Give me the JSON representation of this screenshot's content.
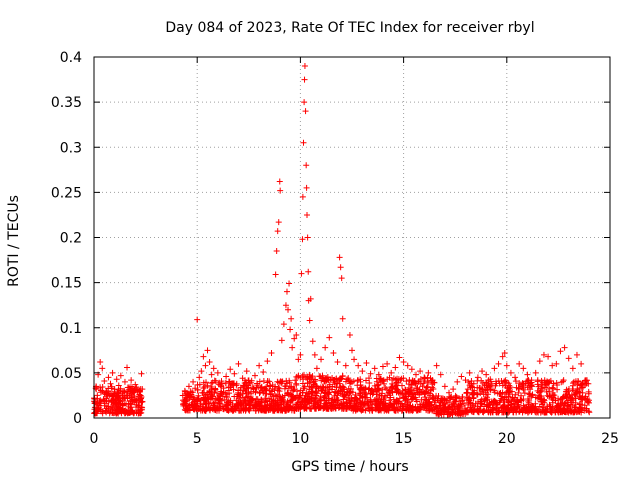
{
  "chart_data": {
    "type": "scatter",
    "title": "Day 084 of 2023, Rate Of TEC Index for receiver rbyl",
    "xlabel": "GPS time / hours",
    "ylabel": "ROTI / TECUs",
    "xlim": [
      0,
      25
    ],
    "ylim": [
      0,
      0.4
    ],
    "x_ticks": [
      {
        "value": 0,
        "label": "0"
      },
      {
        "value": 5,
        "label": "5"
      },
      {
        "value": 10,
        "label": "10"
      },
      {
        "value": 15,
        "label": "15"
      },
      {
        "value": 20,
        "label": "20"
      },
      {
        "value": 25,
        "label": "25"
      }
    ],
    "y_ticks": [
      {
        "value": 0,
        "label": "0"
      },
      {
        "value": 0.05,
        "label": "0.05"
      },
      {
        "value": 0.1,
        "label": "0.1"
      },
      {
        "value": 0.15,
        "label": "0.15"
      },
      {
        "value": 0.2,
        "label": "0.2"
      },
      {
        "value": 0.25,
        "label": "0.25"
      },
      {
        "value": 0.3,
        "label": "0.3"
      },
      {
        "value": 0.35,
        "label": "0.35"
      },
      {
        "value": 0.4,
        "label": "0.4"
      }
    ],
    "grid": true,
    "marker": "+",
    "color": "#ff0000",
    "series": [
      {
        "name": "ROTI",
        "points": [
          [
            0.0,
            0.022
          ],
          [
            0.1,
            0.035
          ],
          [
            0.2,
            0.048
          ],
          [
            0.3,
            0.062
          ],
          [
            0.4,
            0.055
          ],
          [
            0.5,
            0.041
          ],
          [
            0.6,
            0.03
          ],
          [
            0.7,
            0.045
          ],
          [
            0.8,
            0.038
          ],
          [
            0.9,
            0.05
          ],
          [
            1.0,
            0.032
          ],
          [
            1.1,
            0.043
          ],
          [
            1.2,
            0.036
          ],
          [
            1.3,
            0.047
          ],
          [
            1.4,
            0.029
          ],
          [
            1.5,
            0.04
          ],
          [
            1.6,
            0.056
          ],
          [
            1.7,
            0.034
          ],
          [
            1.8,
            0.042
          ],
          [
            1.9,
            0.028
          ],
          [
            2.0,
            0.037
          ],
          [
            2.1,
            0.031
          ],
          [
            2.2,
            0.026
          ],
          [
            2.3,
            0.049
          ],
          [
            2.35,
            0.018
          ],
          [
            4.3,
            0.025
          ],
          [
            4.4,
            0.03
          ],
          [
            4.5,
            0.022
          ],
          [
            4.6,
            0.035
          ],
          [
            4.7,
            0.028
          ],
          [
            4.8,
            0.04
          ],
          [
            4.9,
            0.033
          ],
          [
            5.0,
            0.109
          ],
          [
            5.1,
            0.045
          ],
          [
            5.2,
            0.052
          ],
          [
            5.3,
            0.068
          ],
          [
            5.4,
            0.058
          ],
          [
            5.5,
            0.075
          ],
          [
            5.6,
            0.062
          ],
          [
            5.7,
            0.048
          ],
          [
            5.8,
            0.055
          ],
          [
            5.9,
            0.041
          ],
          [
            6.0,
            0.05
          ],
          [
            6.2,
            0.038
          ],
          [
            6.4,
            0.046
          ],
          [
            6.6,
            0.054
          ],
          [
            6.8,
            0.049
          ],
          [
            7.0,
            0.06
          ],
          [
            7.2,
            0.044
          ],
          [
            7.4,
            0.052
          ],
          [
            7.6,
            0.039
          ],
          [
            7.8,
            0.047
          ],
          [
            8.0,
            0.058
          ],
          [
            8.2,
            0.051
          ],
          [
            8.4,
            0.063
          ],
          [
            8.6,
            0.072
          ],
          [
            8.8,
            0.159
          ],
          [
            8.85,
            0.185
          ],
          [
            8.9,
            0.207
          ],
          [
            8.95,
            0.217
          ],
          [
            9.0,
            0.262
          ],
          [
            9.02,
            0.252
          ],
          [
            9.1,
            0.086
          ],
          [
            9.2,
            0.104
          ],
          [
            9.3,
            0.125
          ],
          [
            9.35,
            0.14
          ],
          [
            9.4,
            0.12
          ],
          [
            9.45,
            0.149
          ],
          [
            9.5,
            0.098
          ],
          [
            9.55,
            0.11
          ],
          [
            9.6,
            0.078
          ],
          [
            9.7,
            0.088
          ],
          [
            9.8,
            0.092
          ],
          [
            9.9,
            0.065
          ],
          [
            10.0,
            0.07
          ],
          [
            10.05,
            0.16
          ],
          [
            10.1,
            0.198
          ],
          [
            10.12,
            0.245
          ],
          [
            10.15,
            0.305
          ],
          [
            10.18,
            0.35
          ],
          [
            10.2,
            0.375
          ],
          [
            10.22,
            0.39
          ],
          [
            10.25,
            0.34
          ],
          [
            10.28,
            0.28
          ],
          [
            10.3,
            0.255
          ],
          [
            10.32,
            0.225
          ],
          [
            10.35,
            0.2
          ],
          [
            10.38,
            0.162
          ],
          [
            10.4,
            0.13
          ],
          [
            10.45,
            0.108
          ],
          [
            10.5,
            0.132
          ],
          [
            10.6,
            0.085
          ],
          [
            10.7,
            0.07
          ],
          [
            10.8,
            0.055
          ],
          [
            11.0,
            0.065
          ],
          [
            11.2,
            0.078
          ],
          [
            11.4,
            0.089
          ],
          [
            11.6,
            0.072
          ],
          [
            11.8,
            0.062
          ],
          [
            11.9,
            0.178
          ],
          [
            11.95,
            0.167
          ],
          [
            12.0,
            0.155
          ],
          [
            12.05,
            0.11
          ],
          [
            12.2,
            0.058
          ],
          [
            12.4,
            0.092
          ],
          [
            12.5,
            0.075
          ],
          [
            12.6,
            0.065
          ],
          [
            12.8,
            0.058
          ],
          [
            13.0,
            0.052
          ],
          [
            13.2,
            0.061
          ],
          [
            13.4,
            0.049
          ],
          [
            13.6,
            0.055
          ],
          [
            13.8,
            0.048
          ],
          [
            14.0,
            0.057
          ],
          [
            14.2,
            0.06
          ],
          [
            14.4,
            0.05
          ],
          [
            14.6,
            0.056
          ],
          [
            14.8,
            0.067
          ],
          [
            15.0,
            0.062
          ],
          [
            15.2,
            0.058
          ],
          [
            15.4,
            0.054
          ],
          [
            15.6,
            0.048
          ],
          [
            15.8,
            0.052
          ],
          [
            16.0,
            0.045
          ],
          [
            16.2,
            0.05
          ],
          [
            16.4,
            0.042
          ],
          [
            16.6,
            0.058
          ],
          [
            16.8,
            0.048
          ],
          [
            17.0,
            0.035
          ],
          [
            17.2,
            0.028
          ],
          [
            17.4,
            0.032
          ],
          [
            17.6,
            0.04
          ],
          [
            17.8,
            0.046
          ],
          [
            18.0,
            0.042
          ],
          [
            18.2,
            0.05
          ],
          [
            18.4,
            0.038
          ],
          [
            18.6,
            0.045
          ],
          [
            18.8,
            0.052
          ],
          [
            19.0,
            0.048
          ],
          [
            19.2,
            0.043
          ],
          [
            19.4,
            0.055
          ],
          [
            19.6,
            0.06
          ],
          [
            19.8,
            0.068
          ],
          [
            19.9,
            0.072
          ],
          [
            20.0,
            0.058
          ],
          [
            20.2,
            0.05
          ],
          [
            20.4,
            0.045
          ],
          [
            20.6,
            0.06
          ],
          [
            20.8,
            0.055
          ],
          [
            21.0,
            0.048
          ],
          [
            21.2,
            0.042
          ],
          [
            21.4,
            0.05
          ],
          [
            21.6,
            0.063
          ],
          [
            21.8,
            0.07
          ],
          [
            22.0,
            0.068
          ],
          [
            22.2,
            0.058
          ],
          [
            22.4,
            0.06
          ],
          [
            22.6,
            0.074
          ],
          [
            22.8,
            0.078
          ],
          [
            23.0,
            0.066
          ],
          [
            23.2,
            0.055
          ],
          [
            23.4,
            0.07
          ],
          [
            23.6,
            0.06
          ],
          [
            23.8,
            0.04
          ],
          [
            23.95,
            0.038
          ]
        ],
        "bands": [
          {
            "x_start": 0.0,
            "x_end": 2.35,
            "y_min": 0.005,
            "y_max": 0.035,
            "n": 260
          },
          {
            "x_start": 4.3,
            "x_end": 5.0,
            "y_min": 0.008,
            "y_max": 0.03,
            "n": 70
          },
          {
            "x_start": 5.0,
            "x_end": 9.8,
            "y_min": 0.008,
            "y_max": 0.042,
            "n": 520
          },
          {
            "x_start": 9.8,
            "x_end": 12.5,
            "y_min": 0.01,
            "y_max": 0.048,
            "n": 330
          },
          {
            "x_start": 12.5,
            "x_end": 16.5,
            "y_min": 0.008,
            "y_max": 0.045,
            "n": 460
          },
          {
            "x_start": 16.5,
            "x_end": 18.0,
            "y_min": 0.004,
            "y_max": 0.025,
            "n": 140
          },
          {
            "x_start": 18.0,
            "x_end": 24.0,
            "y_min": 0.006,
            "y_max": 0.042,
            "n": 620
          }
        ]
      }
    ]
  }
}
